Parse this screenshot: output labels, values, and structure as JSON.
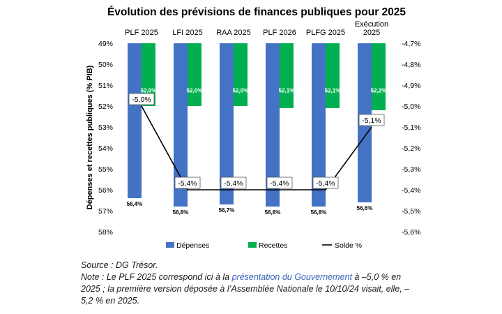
{
  "chart_data": {
    "type": "bar",
    "title": "Évolution des prévisions de finances publiques pour 2025",
    "categories": [
      [
        "PLF 2025"
      ],
      [
        "LFI 2025"
      ],
      [
        "RAA 2025"
      ],
      [
        "PLF 2026"
      ],
      [
        "PLFG 2025"
      ],
      [
        "Exécution",
        "2025"
      ]
    ],
    "ylabel": "Dépenses et recettes publiques (% PIB)",
    "y_left": {
      "reversed": true,
      "ylim": [
        49,
        58
      ],
      "tick_labels": [
        "49%",
        "50%",
        "51%",
        "52%",
        "53%",
        "54%",
        "55%",
        "56%",
        "57%",
        "58%"
      ]
    },
    "y_right": {
      "reversed": true,
      "ylim": [
        -4.7,
        -5.6
      ],
      "tick_labels": [
        "-4,7%",
        "-4,8%",
        "-4,9%",
        "-5,0%",
        "-5,1%",
        "-5,2%",
        "-5,3%",
        "-5,4%",
        "-5,5%",
        "-5,6%"
      ]
    },
    "series": [
      {
        "name": "Dépenses",
        "kind": "bar",
        "axis": "left",
        "color": "#4472c4",
        "values": [
          56.4,
          56.8,
          56.7,
          56.8,
          56.8,
          56.6
        ],
        "labels": [
          "56,4%",
          "56,8%",
          "56,7%",
          "56,8%",
          "56,8%",
          "56,6%"
        ]
      },
      {
        "name": "Recettes",
        "kind": "bar",
        "axis": "left",
        "color": "#00b050",
        "values": [
          52.0,
          52.0,
          52.0,
          52.1,
          52.1,
          52.2
        ],
        "labels": [
          "52,0%",
          "52,0%",
          "52,0%",
          "52,1%",
          "52,1%",
          "52,2%"
        ]
      },
      {
        "name": "Solde %",
        "kind": "line",
        "axis": "right",
        "color": "#000000",
        "values": [
          -5.0,
          -5.4,
          -5.4,
          -5.4,
          -5.4,
          -5.1
        ],
        "labels": [
          "-5,0%",
          "-5,4%",
          "-5,4%",
          "-5,4%",
          "-5,4%",
          "-5,1%"
        ]
      }
    ],
    "legend": "bottom",
    "grid": false
  },
  "notes": {
    "source": "Source : DG Trésor.",
    "note_prefix": "Note : Le PLF 2025 correspond ici à la ",
    "note_link": "présentation du Gouvernement",
    "note_suffix": " à –5,0 % en 2025 ; la première version déposée à l’Assemblée Nationale le 10/10/24 visait, elle, –5,2 % en 2025."
  }
}
